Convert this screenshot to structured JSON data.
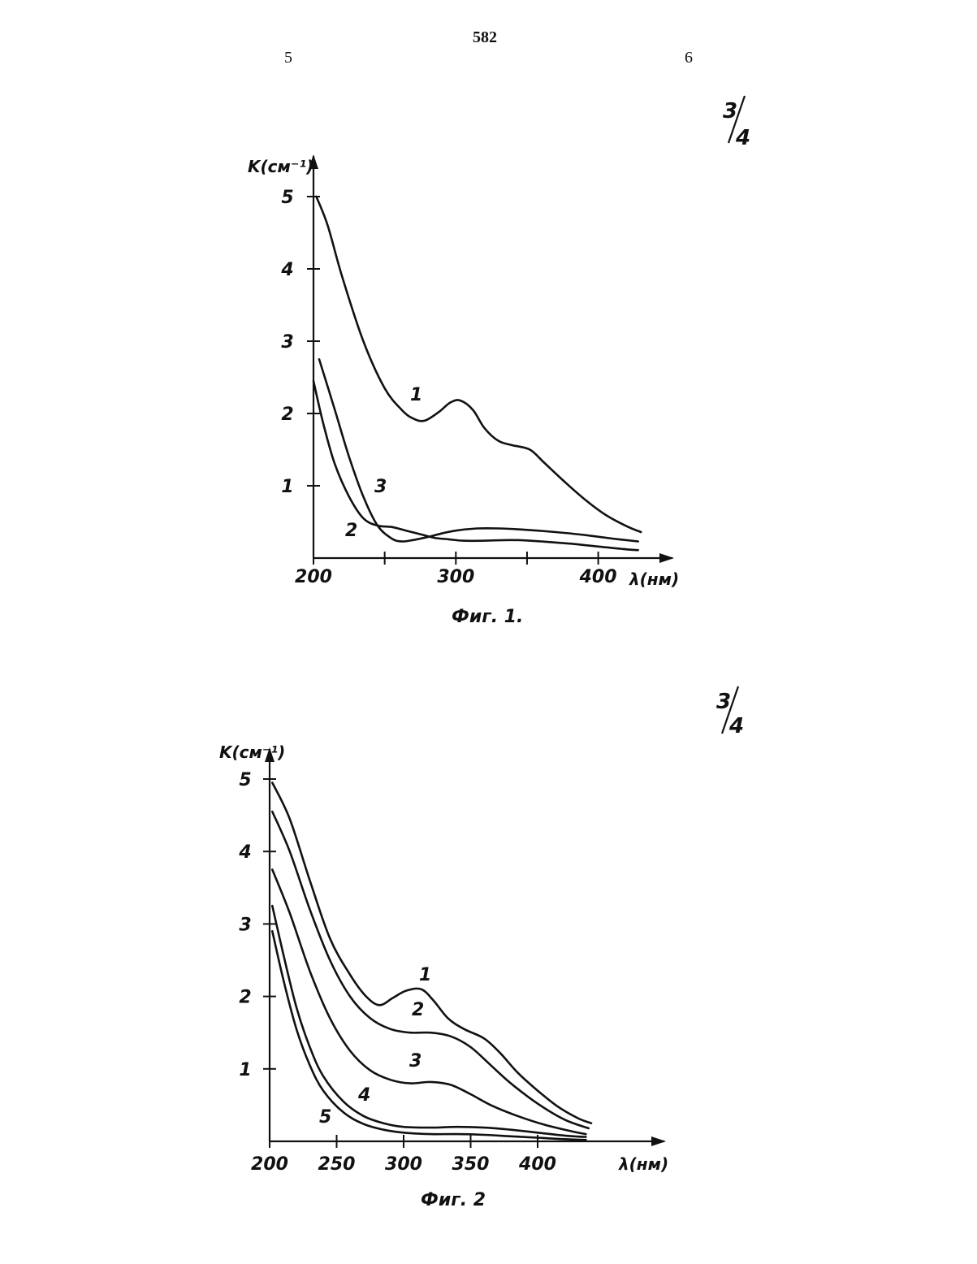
{
  "page": {
    "page_number": "582",
    "column_left": "5",
    "column_right": "6",
    "frac_top_num": "3",
    "frac_top_den": "4",
    "frac_mid_num": "3",
    "frac_mid_den": "4"
  },
  "chart_data": [
    {
      "type": "line",
      "caption": "Фиг. 1.",
      "xlabel": "λ(нм)",
      "ylabel": "K(см⁻¹)",
      "xlim": [
        200,
        440
      ],
      "ylim": [
        0,
        5
      ],
      "x_ticks": [
        200,
        250,
        300,
        350,
        400
      ],
      "x_tick_labels": [
        "200",
        "",
        "300",
        "",
        "400"
      ],
      "y_ticks": [
        1,
        2,
        3,
        4,
        5
      ],
      "y_tick_labels": [
        "1",
        "2",
        "3",
        "4",
        "5"
      ],
      "grid": false,
      "series": [
        {
          "name": "1",
          "x": [
            202,
            210,
            220,
            235,
            250,
            262,
            270,
            278,
            288,
            296,
            303,
            312,
            320,
            330,
            340,
            352,
            362,
            375,
            390,
            405,
            420,
            430
          ],
          "y": [
            5.0,
            4.6,
            3.9,
            3.0,
            2.35,
            2.05,
            1.93,
            1.9,
            2.02,
            2.15,
            2.18,
            2.05,
            1.8,
            1.62,
            1.56,
            1.5,
            1.32,
            1.08,
            0.82,
            0.6,
            0.44,
            0.36
          ]
        },
        {
          "name": "2",
          "x": [
            200,
            207,
            215,
            225,
            235,
            245,
            255,
            265,
            275,
            285,
            295,
            305,
            320,
            340,
            360,
            380,
            400,
            420,
            428
          ],
          "y": [
            2.45,
            1.85,
            1.3,
            0.85,
            0.55,
            0.45,
            0.43,
            0.38,
            0.33,
            0.28,
            0.26,
            0.24,
            0.24,
            0.25,
            0.23,
            0.2,
            0.16,
            0.12,
            0.11
          ]
        },
        {
          "name": "3",
          "x": [
            204,
            215,
            225,
            235,
            245,
            255,
            262,
            270,
            280,
            290,
            300,
            315,
            330,
            350,
            370,
            390,
            410,
            428
          ],
          "y": [
            2.75,
            2.05,
            1.4,
            0.85,
            0.45,
            0.27,
            0.23,
            0.25,
            0.29,
            0.34,
            0.38,
            0.41,
            0.41,
            0.39,
            0.36,
            0.32,
            0.27,
            0.23
          ]
        }
      ]
    },
    {
      "type": "line",
      "caption": "Фиг. 2",
      "xlabel": "λ(нм)",
      "ylabel": "K(см⁻¹)",
      "xlim": [
        200,
        440
      ],
      "ylim": [
        0,
        5
      ],
      "x_ticks": [
        200,
        250,
        300,
        350,
        400
      ],
      "x_tick_labels": [
        "200",
        "250",
        "300",
        "350",
        "400"
      ],
      "y_ticks": [
        1,
        2,
        3,
        4,
        5
      ],
      "y_tick_labels": [
        "1",
        "2",
        "3",
        "4",
        "5"
      ],
      "grid": false,
      "series": [
        {
          "name": "1",
          "x": [
            202,
            215,
            230,
            245,
            260,
            272,
            282,
            292,
            302,
            313,
            322,
            333,
            345,
            360,
            372,
            385,
            400,
            415,
            430,
            440
          ],
          "y": [
            4.95,
            4.45,
            3.6,
            2.8,
            2.3,
            2.0,
            1.88,
            1.98,
            2.08,
            2.1,
            1.95,
            1.7,
            1.55,
            1.42,
            1.22,
            0.95,
            0.7,
            0.48,
            0.32,
            0.25
          ]
        },
        {
          "name": "2",
          "x": [
            202,
            215,
            230,
            245,
            260,
            275,
            290,
            305,
            320,
            335,
            350,
            365,
            380,
            400,
            420,
            438
          ],
          "y": [
            4.55,
            4.0,
            3.2,
            2.5,
            2.0,
            1.7,
            1.55,
            1.5,
            1.5,
            1.45,
            1.3,
            1.05,
            0.8,
            0.52,
            0.3,
            0.18
          ]
        },
        {
          "name": "3",
          "x": [
            202,
            215,
            230,
            245,
            260,
            275,
            290,
            305,
            320,
            335,
            350,
            365,
            385,
            405,
            425,
            436
          ],
          "y": [
            3.75,
            3.15,
            2.35,
            1.7,
            1.25,
            0.98,
            0.85,
            0.8,
            0.82,
            0.78,
            0.65,
            0.5,
            0.35,
            0.23,
            0.14,
            0.1
          ]
        },
        {
          "name": "4",
          "x": [
            202,
            210,
            220,
            230,
            240,
            255,
            270,
            285,
            300,
            320,
            340,
            360,
            380,
            400,
            420,
            436
          ],
          "y": [
            3.25,
            2.6,
            1.85,
            1.3,
            0.9,
            0.55,
            0.35,
            0.25,
            0.2,
            0.19,
            0.2,
            0.19,
            0.16,
            0.12,
            0.08,
            0.06
          ]
        },
        {
          "name": "5",
          "x": [
            202,
            210,
            220,
            230,
            240,
            255,
            270,
            285,
            300,
            320,
            340,
            360,
            380,
            400,
            420,
            436
          ],
          "y": [
            2.9,
            2.25,
            1.55,
            1.05,
            0.7,
            0.4,
            0.24,
            0.16,
            0.12,
            0.1,
            0.1,
            0.09,
            0.07,
            0.05,
            0.03,
            0.02
          ]
        }
      ]
    }
  ]
}
